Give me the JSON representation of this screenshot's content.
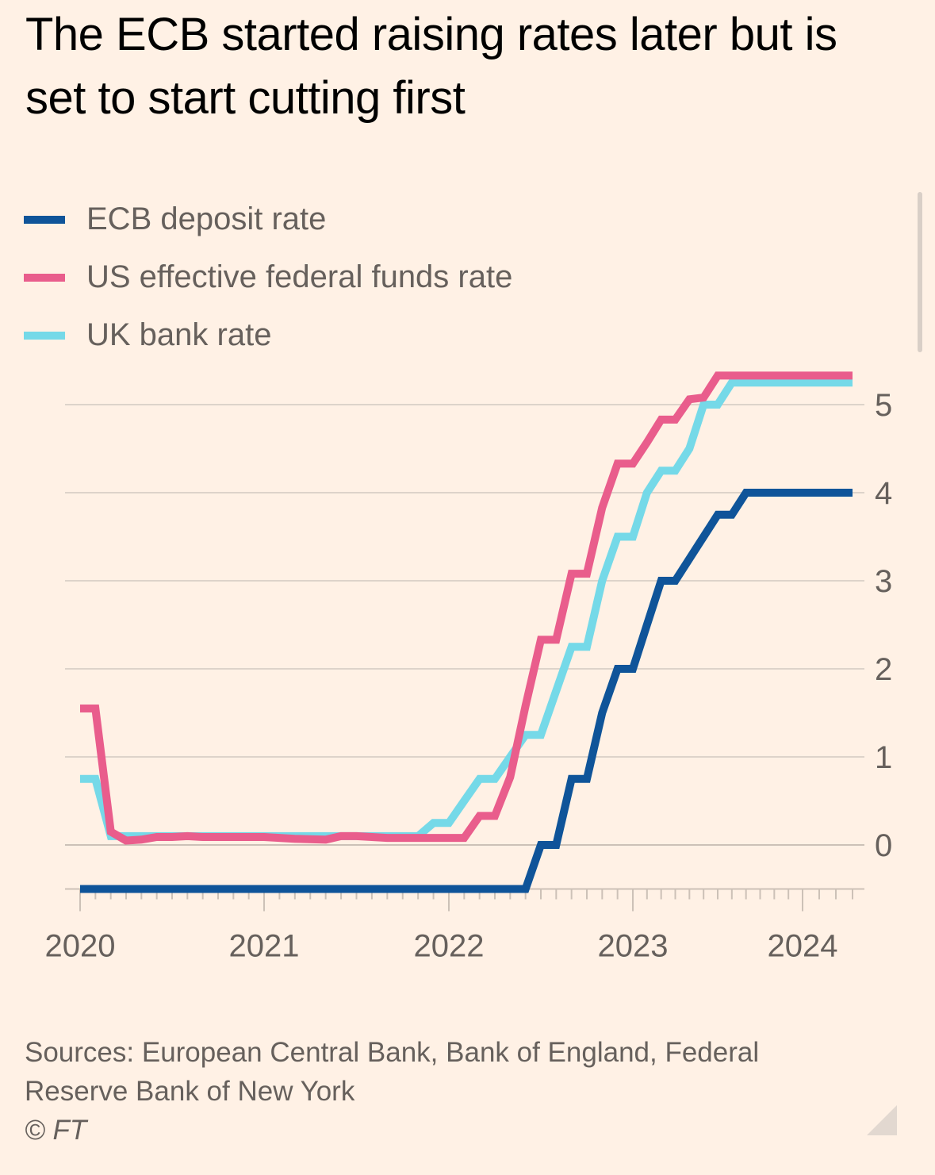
{
  "title": "The ECB started raising rates later but is set to start cutting first",
  "legend": [
    {
      "label": "ECB deposit rate",
      "color": "#0f5499"
    },
    {
      "label": "US effective federal funds rate",
      "color": "#e95d8c"
    },
    {
      "label": "UK bank rate",
      "color": "#75d9e8"
    }
  ],
  "footer": {
    "sources": "Sources: European Central Bank, Bank of England, Federal Reserve Bank of New York",
    "copyright": "© FT"
  },
  "chart_data": {
    "type": "line",
    "title": "The ECB started raising rates later but is set to start cutting first",
    "xlabel": "",
    "ylabel": "",
    "x_unit": "month index (0 = Jan 2020)",
    "x_range": [
      0,
      51
    ],
    "x_ticks": [
      {
        "label": "2020",
        "month": 0
      },
      {
        "label": "2021",
        "month": 12
      },
      {
        "label": "2022",
        "month": 24
      },
      {
        "label": "2023",
        "month": 36
      },
      {
        "label": "2024",
        "month": 48
      }
    ],
    "y_ticks": [
      0,
      1,
      2,
      3,
      4,
      5
    ],
    "ylim": [
      -0.5,
      5.4
    ],
    "y_axis_position": "right",
    "grid": true,
    "legend_position": "top-left",
    "series": [
      {
        "name": "ECB deposit rate",
        "color": "#0f5499",
        "points": [
          [
            0,
            -0.5
          ],
          [
            29,
            -0.5
          ],
          [
            30,
            0
          ],
          [
            31,
            0
          ],
          [
            32,
            0.75
          ],
          [
            33,
            0.75
          ],
          [
            34,
            1.5
          ],
          [
            35,
            2.0
          ],
          [
            36,
            2.0
          ],
          [
            37,
            2.5
          ],
          [
            38,
            3.0
          ],
          [
            39,
            3.0
          ],
          [
            40,
            3.25
          ],
          [
            41,
            3.5
          ],
          [
            42,
            3.75
          ],
          [
            43,
            3.75
          ],
          [
            44,
            4.0
          ],
          [
            51,
            4.0
          ]
        ]
      },
      {
        "name": "US effective federal funds rate",
        "color": "#e95d8c",
        "points": [
          [
            0,
            1.55
          ],
          [
            1,
            1.55
          ],
          [
            2,
            0.15
          ],
          [
            3,
            0.05
          ],
          [
            4,
            0.06
          ],
          [
            5,
            0.09
          ],
          [
            6,
            0.09
          ],
          [
            7,
            0.1
          ],
          [
            8,
            0.09
          ],
          [
            9,
            0.09
          ],
          [
            12,
            0.09
          ],
          [
            13,
            0.08
          ],
          [
            14,
            0.07
          ],
          [
            16,
            0.06
          ],
          [
            17,
            0.1
          ],
          [
            18,
            0.1
          ],
          [
            20,
            0.08
          ],
          [
            21,
            0.08
          ],
          [
            24,
            0.08
          ],
          [
            25,
            0.08
          ],
          [
            26,
            0.33
          ],
          [
            27,
            0.33
          ],
          [
            28,
            0.77
          ],
          [
            29,
            1.58
          ],
          [
            30,
            2.33
          ],
          [
            31,
            2.33
          ],
          [
            32,
            3.08
          ],
          [
            33,
            3.08
          ],
          [
            34,
            3.83
          ],
          [
            35,
            4.33
          ],
          [
            36,
            4.33
          ],
          [
            37,
            4.57
          ],
          [
            38,
            4.83
          ],
          [
            39,
            4.83
          ],
          [
            40,
            5.06
          ],
          [
            41,
            5.08
          ],
          [
            42,
            5.33
          ],
          [
            51,
            5.33
          ]
        ]
      },
      {
        "name": "UK bank rate",
        "color": "#75d9e8",
        "points": [
          [
            0,
            0.75
          ],
          [
            1,
            0.75
          ],
          [
            2,
            0.1
          ],
          [
            22,
            0.1
          ],
          [
            23,
            0.25
          ],
          [
            24,
            0.25
          ],
          [
            25,
            0.5
          ],
          [
            26,
            0.75
          ],
          [
            27,
            0.75
          ],
          [
            28,
            1.0
          ],
          [
            29,
            1.25
          ],
          [
            30,
            1.25
          ],
          [
            31,
            1.75
          ],
          [
            32,
            2.25
          ],
          [
            33,
            2.25
          ],
          [
            34,
            3.0
          ],
          [
            35,
            3.5
          ],
          [
            36,
            3.5
          ],
          [
            37,
            4.0
          ],
          [
            38,
            4.25
          ],
          [
            39,
            4.25
          ],
          [
            40,
            4.5
          ],
          [
            41,
            5.0
          ],
          [
            42,
            5.0
          ],
          [
            43,
            5.25
          ],
          [
            51,
            5.25
          ]
        ]
      }
    ]
  }
}
